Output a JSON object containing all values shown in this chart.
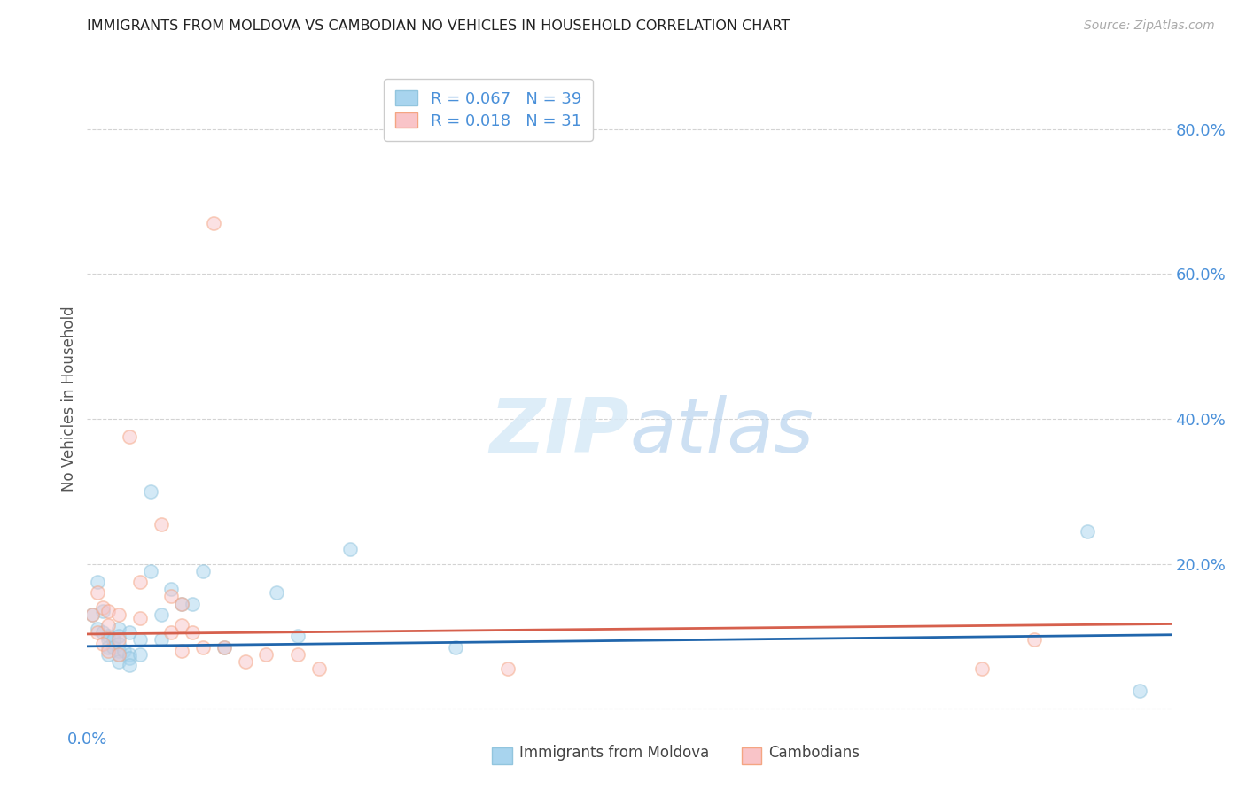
{
  "title": "IMMIGRANTS FROM MOLDOVA VS CAMBODIAN NO VEHICLES IN HOUSEHOLD CORRELATION CHART",
  "source": "Source: ZipAtlas.com",
  "ylabel": "No Vehicles in Household",
  "xlim": [
    0.0,
    0.103
  ],
  "ylim": [
    -0.025,
    0.88
  ],
  "legend_r1": "R = 0.067",
  "legend_n1": "N = 39",
  "legend_r2": "R = 0.018",
  "legend_n2": "N = 31",
  "blue_color": "#92c5de",
  "pink_color": "#f4a582",
  "blue_color_hex": "#a8d4ee",
  "pink_color_hex": "#f9c4c8",
  "blue_line_color": "#2166ac",
  "pink_line_color": "#d6604d",
  "axis_color": "#4a90d9",
  "watermark_color": "#d8eaf7",
  "blue_scatter_x": [
    0.0005,
    0.001,
    0.001,
    0.0015,
    0.0015,
    0.002,
    0.002,
    0.002,
    0.002,
    0.0025,
    0.0025,
    0.003,
    0.003,
    0.003,
    0.003,
    0.003,
    0.003,
    0.0035,
    0.004,
    0.004,
    0.004,
    0.004,
    0.005,
    0.005,
    0.006,
    0.006,
    0.007,
    0.007,
    0.008,
    0.009,
    0.01,
    0.011,
    0.013,
    0.018,
    0.02,
    0.025,
    0.035,
    0.095,
    0.1
  ],
  "blue_scatter_y": [
    0.13,
    0.11,
    0.175,
    0.135,
    0.105,
    0.1,
    0.095,
    0.085,
    0.075,
    0.095,
    0.085,
    0.11,
    0.1,
    0.09,
    0.08,
    0.075,
    0.065,
    0.08,
    0.105,
    0.075,
    0.07,
    0.06,
    0.095,
    0.075,
    0.3,
    0.19,
    0.13,
    0.095,
    0.165,
    0.145,
    0.145,
    0.19,
    0.085,
    0.16,
    0.1,
    0.22,
    0.085,
    0.245,
    0.025
  ],
  "pink_scatter_x": [
    0.0005,
    0.001,
    0.001,
    0.0015,
    0.0015,
    0.002,
    0.002,
    0.002,
    0.003,
    0.003,
    0.003,
    0.004,
    0.005,
    0.005,
    0.007,
    0.008,
    0.008,
    0.009,
    0.009,
    0.009,
    0.01,
    0.011,
    0.012,
    0.013,
    0.015,
    0.017,
    0.02,
    0.022,
    0.04,
    0.085,
    0.09
  ],
  "pink_scatter_y": [
    0.13,
    0.16,
    0.105,
    0.14,
    0.09,
    0.135,
    0.115,
    0.08,
    0.13,
    0.095,
    0.075,
    0.375,
    0.175,
    0.125,
    0.255,
    0.155,
    0.105,
    0.145,
    0.115,
    0.08,
    0.105,
    0.085,
    0.67,
    0.085,
    0.065,
    0.075,
    0.075,
    0.055,
    0.055,
    0.055,
    0.095
  ],
  "blue_trend_x": [
    0.0,
    0.103
  ],
  "blue_trend_y": [
    0.086,
    0.102
  ],
  "pink_trend_x": [
    0.0,
    0.103
  ],
  "pink_trend_y": [
    0.103,
    0.117
  ],
  "marker_size": 120,
  "alpha": 0.5,
  "x_ticks": [
    0.0,
    0.02,
    0.04,
    0.06,
    0.08,
    0.1
  ],
  "x_tick_labels_show": {
    "0.0": "0.0%"
  },
  "y_ticks": [
    0.0,
    0.2,
    0.4,
    0.6,
    0.8
  ],
  "y_tick_labels": [
    "",
    "20.0%",
    "40.0%",
    "60.0%",
    "80.0%"
  ]
}
